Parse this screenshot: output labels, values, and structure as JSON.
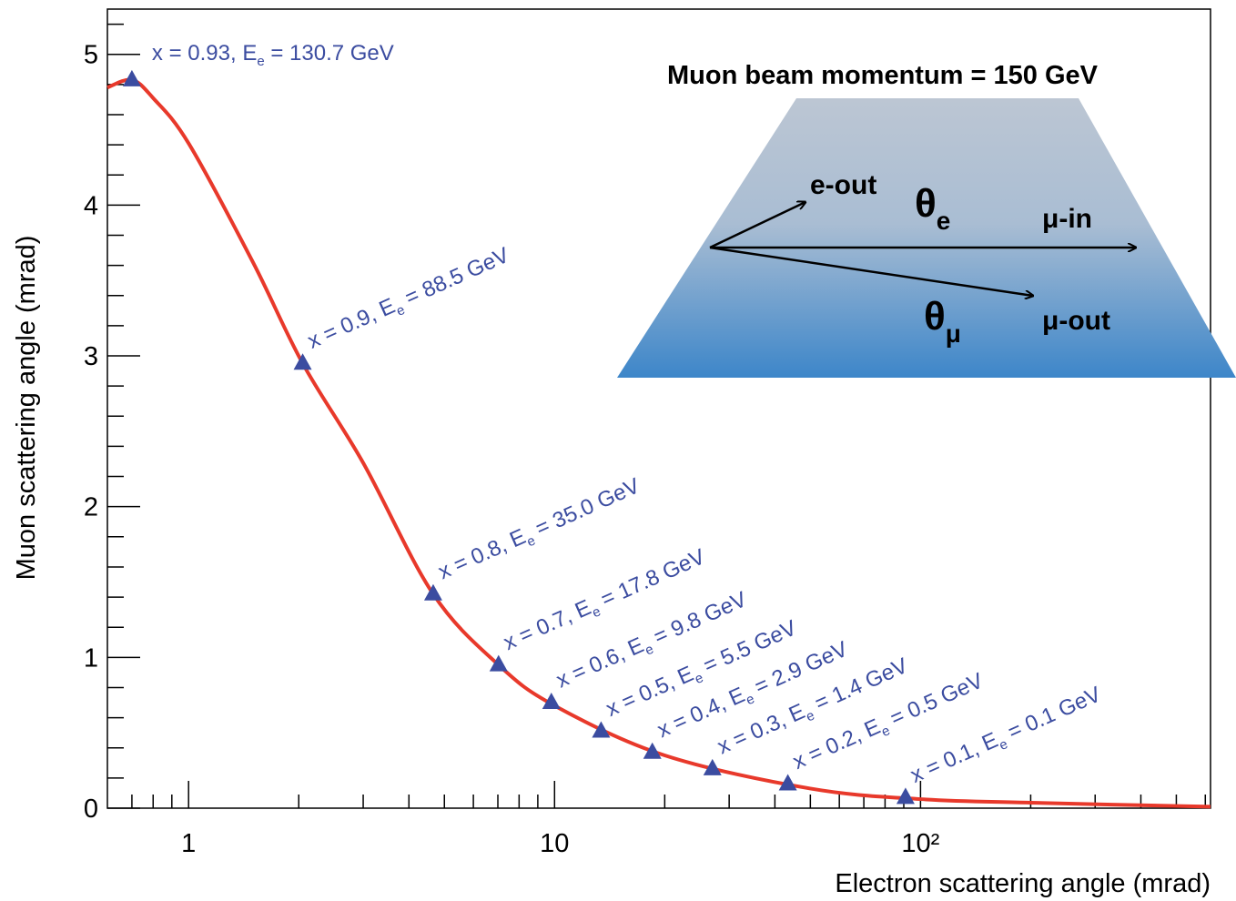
{
  "chart_data": {
    "type": "line",
    "x_label": "Electron scattering angle (mrad)",
    "y_label": "Muon scattering angle (mrad)",
    "xscale": "log",
    "xlim": [
      0.6,
      620
    ],
    "ylim": [
      0,
      5.3
    ],
    "xticks": [
      1,
      10,
      {
        "value": 100,
        "label": "10²"
      }
    ],
    "xminorticks": [
      0.7,
      0.8,
      0.9,
      2,
      3,
      4,
      5,
      6,
      7,
      8,
      9,
      20,
      30,
      40,
      50,
      60,
      70,
      80,
      90,
      200,
      300,
      400,
      500,
      600
    ],
    "yticks": [
      0,
      1,
      2,
      3,
      4,
      5
    ],
    "yminorticks": [
      0.2,
      0.4,
      0.6,
      0.8,
      1.2,
      1.4,
      1.6,
      1.8,
      2.2,
      2.4,
      2.6,
      2.8,
      3.2,
      3.4,
      3.6,
      3.8,
      4.2,
      4.4,
      4.6,
      4.8,
      5.2
    ],
    "series": [
      {
        "type": "line",
        "color": "#e8392b",
        "x": [
          0.6,
          0.7,
          0.8,
          1.0,
          1.5,
          2.05,
          3.0,
          4.66,
          7.03,
          10,
          20,
          50,
          100,
          200,
          620
        ],
        "values": [
          4.78,
          4.83,
          4.71,
          4.41,
          3.62,
          2.95,
          2.29,
          1.42,
          0.95,
          0.68,
          0.35,
          0.13,
          0.06,
          0.036,
          0.01
        ]
      },
      {
        "type": "scatter",
        "marker": "triangle",
        "color": "#3b4ca0",
        "x": [
          0.7,
          2.05,
          4.66,
          7.03,
          9.8,
          13.4,
          18.5,
          27.0,
          43.4,
          91
        ],
        "values": [
          4.83,
          2.95,
          1.42,
          0.95,
          0.7,
          0.51,
          0.37,
          0.26,
          0.16,
          0.07
        ],
        "annotations": [
          {
            "prefix": "x = 0.93, E",
            "sub": "e",
            "suffix": " = 130.7 GeV"
          },
          {
            "prefix": "x = 0.9, E",
            "sub": "e",
            "suffix": " = 88.5 GeV"
          },
          {
            "prefix": "x = 0.8, E",
            "sub": "e",
            "suffix": " = 35.0 GeV"
          },
          {
            "prefix": "x = 0.7, E",
            "sub": "e",
            "suffix": " = 17.8 GeV"
          },
          {
            "prefix": "x = 0.6, E",
            "sub": "e",
            "suffix": " =  9.8 GeV"
          },
          {
            "prefix": "x = 0.5, E",
            "sub": "e",
            "suffix": " =  5.5 GeV"
          },
          {
            "prefix": "x = 0.4, E",
            "sub": "e",
            "suffix": " =  2.9 GeV"
          },
          {
            "prefix": "x = 0.3, E",
            "sub": "e",
            "suffix": " =  1.4 GeV"
          },
          {
            "prefix": "x = 0.2, E",
            "sub": "e",
            "suffix": " =  0.5 GeV"
          },
          {
            "prefix": "x = 0.1, E",
            "sub": "e",
            "suffix": " = 0.1 GeV"
          }
        ]
      }
    ],
    "inset": {
      "title": "Muon beam momentum  = 150 GeV",
      "e_out": "e-out",
      "mu_in": "μ-in",
      "mu_out": "μ-out",
      "theta_e": {
        "symbol": "θ",
        "sub": "e"
      },
      "theta_mu": {
        "symbol": "θ",
        "sub": "μ"
      }
    }
  }
}
